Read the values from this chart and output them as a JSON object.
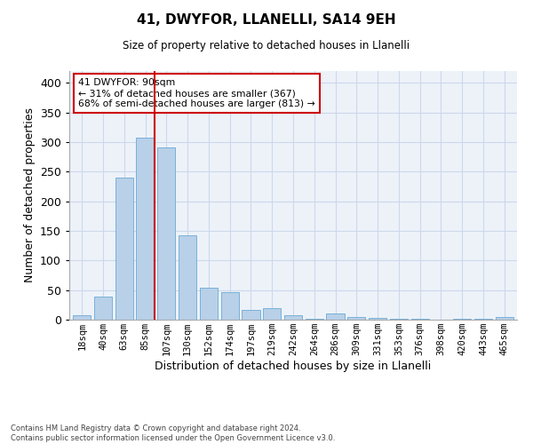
{
  "title_line1": "41, DWYFOR, LLANELLI, SA14 9EH",
  "title_line2": "Size of property relative to detached houses in Llanelli",
  "xlabel": "Distribution of detached houses by size in Llanelli",
  "ylabel": "Number of detached properties",
  "footnote": "Contains HM Land Registry data © Crown copyright and database right 2024.\nContains public sector information licensed under the Open Government Licence v3.0.",
  "categories": [
    "18sqm",
    "40sqm",
    "63sqm",
    "85sqm",
    "107sqm",
    "130sqm",
    "152sqm",
    "174sqm",
    "197sqm",
    "219sqm",
    "242sqm",
    "264sqm",
    "286sqm",
    "309sqm",
    "331sqm",
    "353sqm",
    "376sqm",
    "398sqm",
    "420sqm",
    "443sqm",
    "465sqm"
  ],
  "values": [
    7,
    39,
    240,
    307,
    291,
    143,
    54,
    46,
    17,
    19,
    7,
    1,
    10,
    5,
    3,
    2,
    2,
    0,
    2,
    1,
    4
  ],
  "bar_color": "#b8d0e8",
  "bar_edge_color": "#6aaad4",
  "vline_color": "#cc0000",
  "annotation_text": "41 DWYFOR: 90sqm\n← 31% of detached houses are smaller (367)\n68% of semi-detached houses are larger (813) →",
  "annotation_box_color": "#ffffff",
  "annotation_box_edge": "#cc0000",
  "ylim": [
    0,
    420
  ],
  "yticks": [
    0,
    50,
    100,
    150,
    200,
    250,
    300,
    350,
    400
  ],
  "grid_color": "#ccd8ea",
  "background_color": "#edf2f9"
}
